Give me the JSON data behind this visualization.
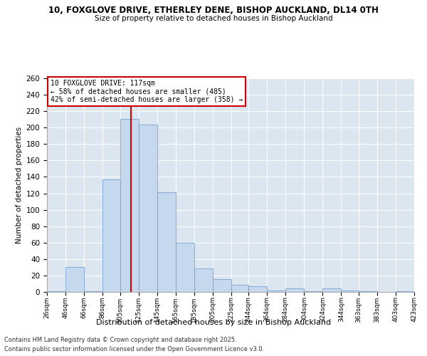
{
  "title": "10, FOXGLOVE DRIVE, ETHERLEY DENE, BISHOP AUCKLAND, DL14 0TH",
  "subtitle": "Size of property relative to detached houses in Bishop Auckland",
  "xlabel": "Distribution of detached houses by size in Bishop Auckland",
  "ylabel": "Number of detached properties",
  "footnote1": "Contains HM Land Registry data © Crown copyright and database right 2025.",
  "footnote2": "Contains public sector information licensed under the Open Government Licence v3.0.",
  "annotation_title": "10 FOXGLOVE DRIVE: 117sqm",
  "annotation_line1": "← 58% of detached houses are smaller (485)",
  "annotation_line2": "42% of semi-detached houses are larger (358) →",
  "property_size": 117,
  "bins": [
    26,
    46,
    66,
    86,
    105,
    125,
    145,
    165,
    185,
    205,
    225,
    244,
    264,
    284,
    304,
    324,
    344,
    363,
    383,
    403,
    423
  ],
  "bin_labels": [
    "26sqm",
    "46sqm",
    "66sqm",
    "86sqm",
    "105sqm",
    "125sqm",
    "145sqm",
    "165sqm",
    "185sqm",
    "205sqm",
    "225sqm",
    "244sqm",
    "264sqm",
    "284sqm",
    "304sqm",
    "324sqm",
    "344sqm",
    "363sqm",
    "383sqm",
    "403sqm",
    "423sqm"
  ],
  "values": [
    1,
    30,
    1,
    137,
    211,
    204,
    121,
    60,
    29,
    16,
    9,
    7,
    2,
    4,
    1,
    4,
    2,
    1,
    0,
    1
  ],
  "bar_color": "#c5d8ed",
  "bar_edge_color": "#6699cc",
  "highlight_color": "#cc0000",
  "background_color": "#dce6f1",
  "plot_bg_color": "#dce6f1",
  "grid_color": "#ffffff",
  "ylim": [
    0,
    260
  ],
  "yticks": [
    0,
    20,
    40,
    60,
    80,
    100,
    120,
    140,
    160,
    180,
    200,
    220,
    240,
    260
  ]
}
